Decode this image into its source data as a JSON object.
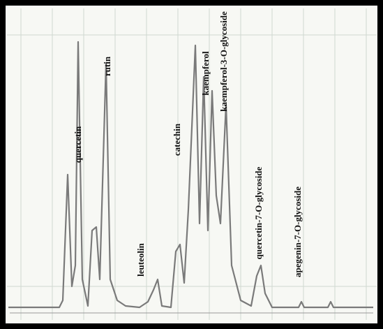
{
  "peaks": [
    {
      "label": "quercetin"
    },
    {
      "label": "rutin"
    },
    {
      "label": "leuteolin"
    },
    {
      "label": "catechin"
    },
    {
      "label": "kaempferol"
    },
    {
      "label": "kaempferol-3-O-glycoside"
    },
    {
      "label": "quercetin-7-O-glycoside"
    },
    {
      "label": "apegenin-7-O-glycoside"
    }
  ]
}
